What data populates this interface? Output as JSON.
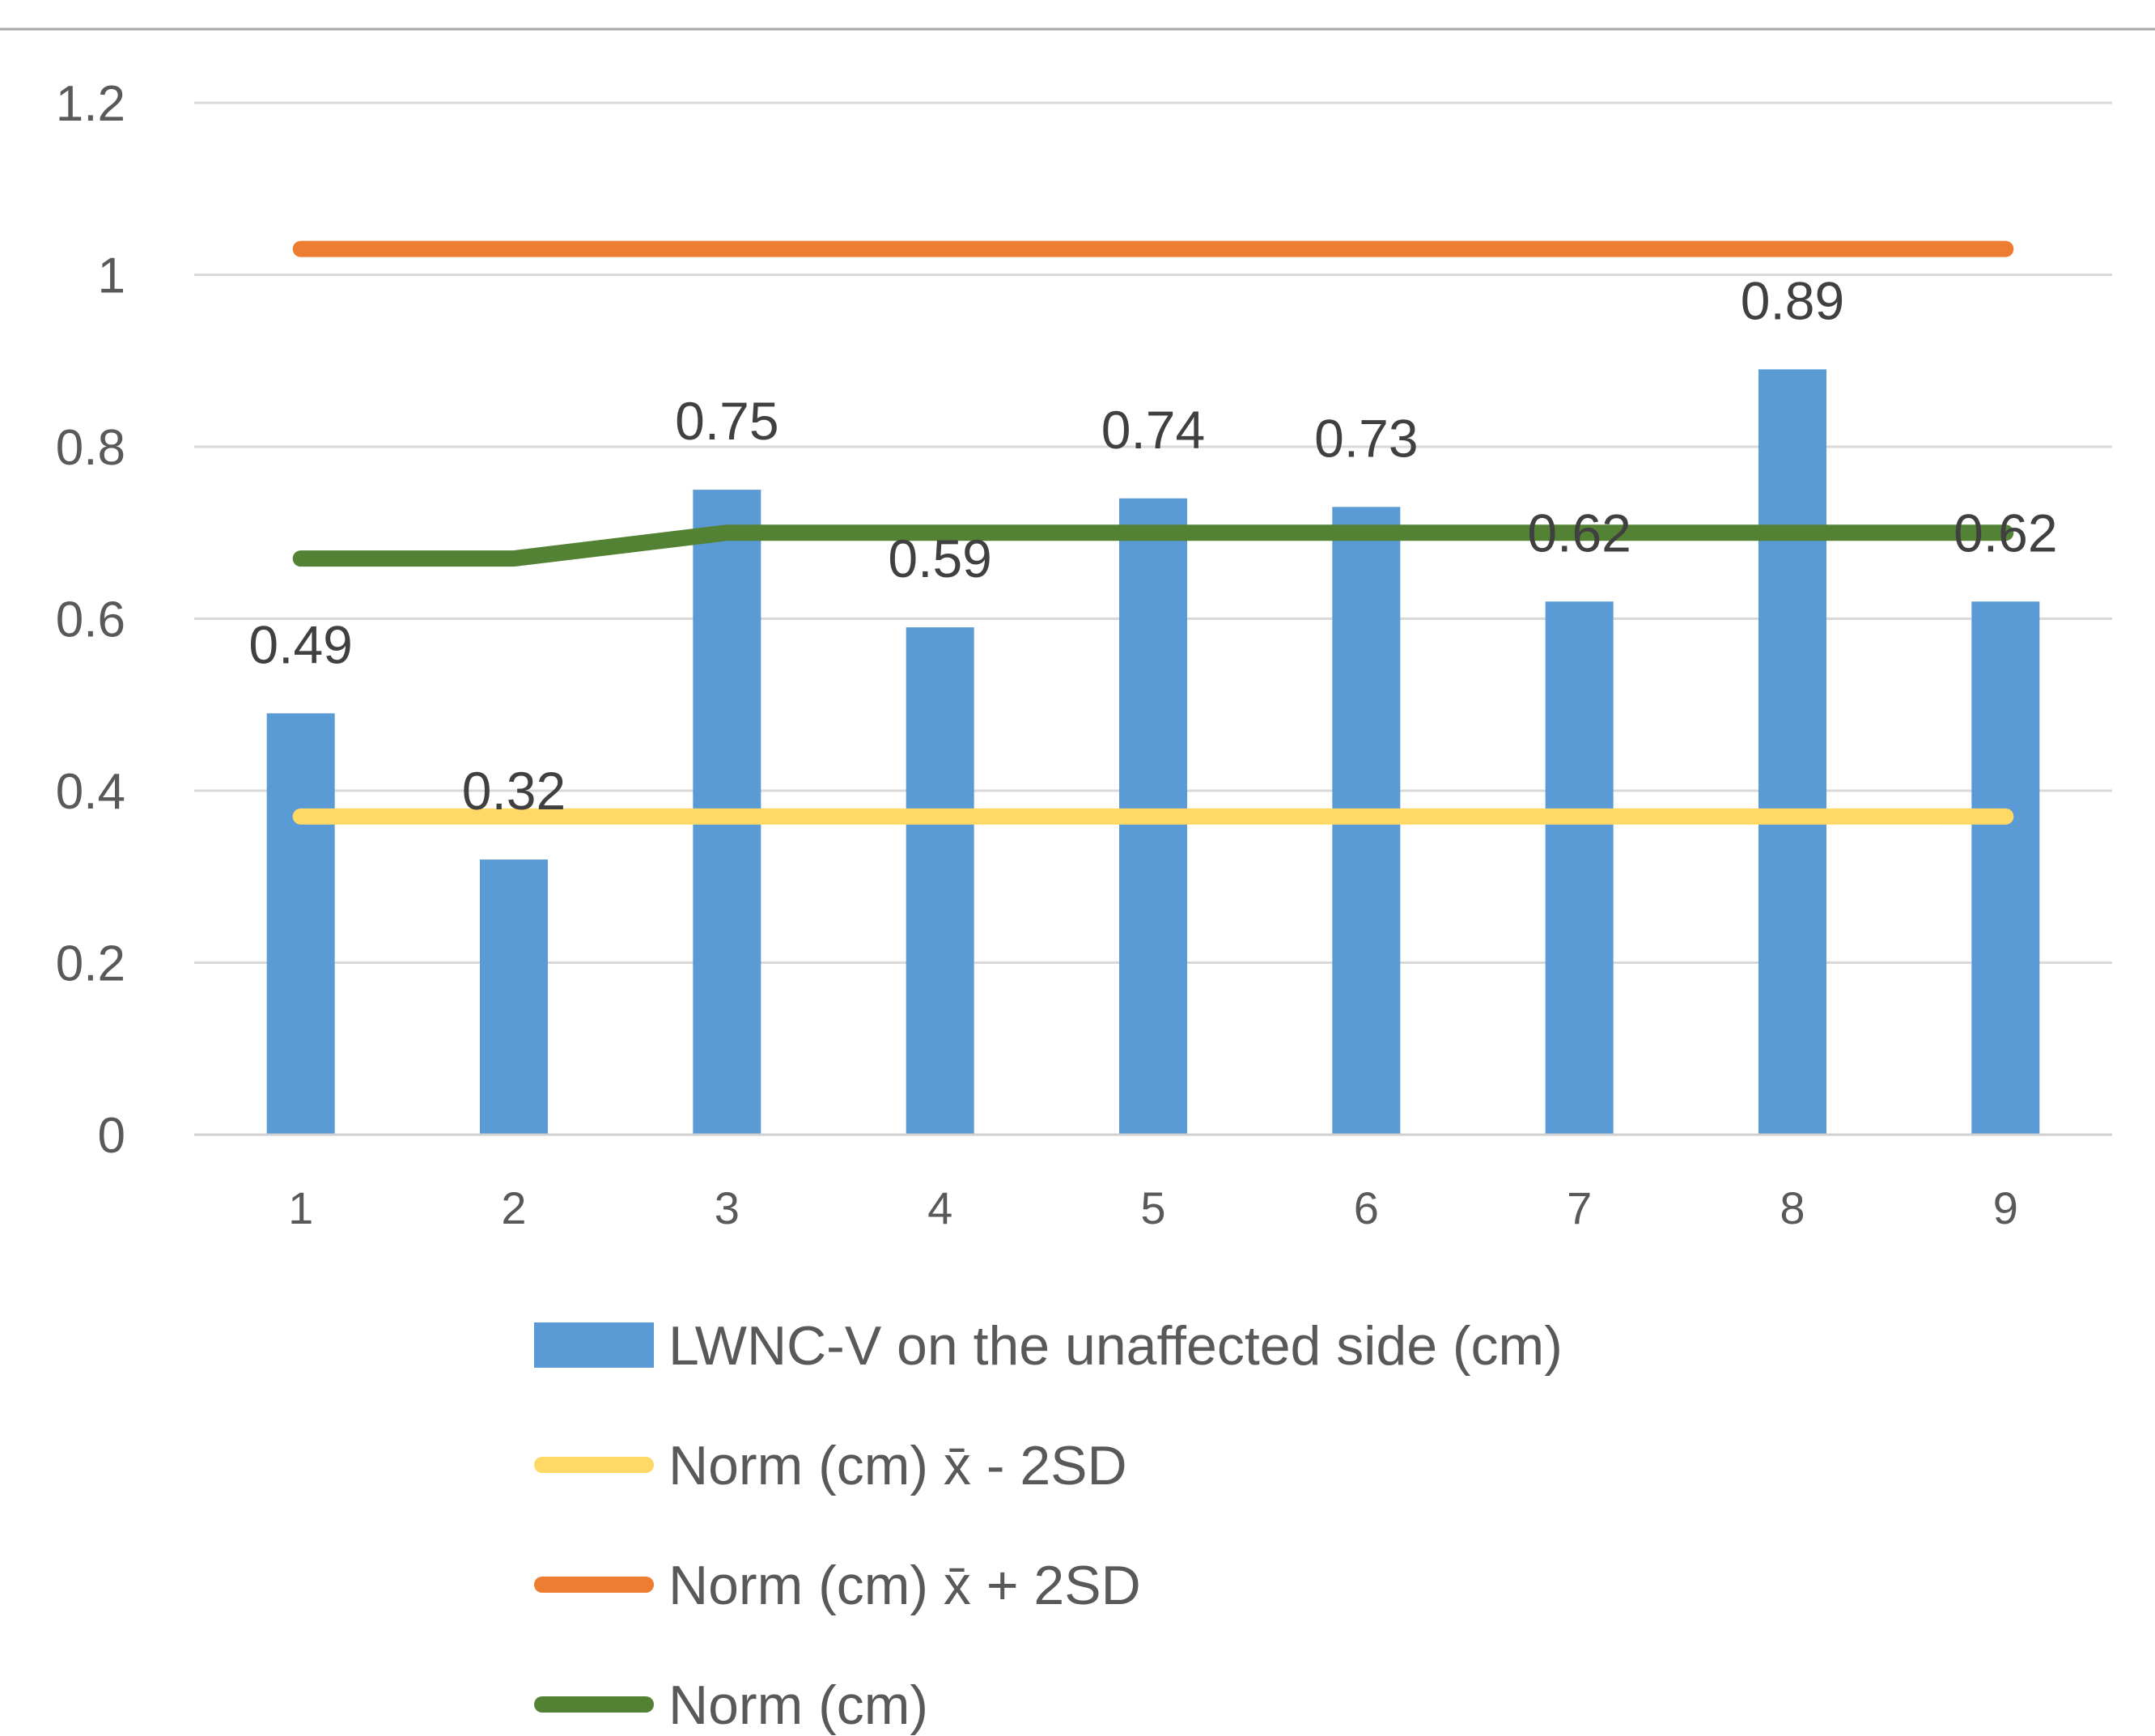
{
  "chart_data": {
    "type": "bar",
    "title": "",
    "xlabel": "",
    "ylabel": "",
    "categories": [
      "1",
      "2",
      "3",
      "4",
      "5",
      "6",
      "7",
      "8",
      "9"
    ],
    "ylim": [
      0,
      1.2
    ],
    "yticks": [
      "0",
      "0.2",
      "0.4",
      "0.6",
      "0.8",
      "1",
      "1.2"
    ],
    "ytick_values": [
      0,
      0.2,
      0.4,
      0.6,
      0.8,
      1.0,
      1.2
    ],
    "grid": true,
    "legend_position": "bottom",
    "series": [
      {
        "name": "LWNC-V on the unaffected side (cm)",
        "kind": "bar",
        "color": "#5B9BD5",
        "values": [
          0.49,
          0.32,
          0.75,
          0.59,
          0.74,
          0.73,
          0.62,
          0.89,
          0.62
        ],
        "data_labels": [
          "0.49",
          "0.32",
          "0.75",
          "0.59",
          "0.74",
          "0.73",
          "0.62",
          "0.89",
          "0.62"
        ]
      },
      {
        "name": "Norm (cm) x̄ - 2SD",
        "kind": "line",
        "color": "#FFD966",
        "values": [
          0.37,
          0.37,
          0.37,
          0.37,
          0.37,
          0.37,
          0.37,
          0.37,
          0.37
        ]
      },
      {
        "name": "Norm (cm) x̄ + 2SD",
        "kind": "line",
        "color": "#ED7D31",
        "values": [
          1.03,
          1.03,
          1.03,
          1.03,
          1.03,
          1.03,
          1.03,
          1.03,
          1.03
        ]
      },
      {
        "name": "Norm (cm)",
        "kind": "line",
        "color": "#548235",
        "values": [
          0.67,
          0.67,
          0.7,
          0.7,
          0.7,
          0.7,
          0.7,
          0.7,
          0.7
        ]
      }
    ]
  }
}
